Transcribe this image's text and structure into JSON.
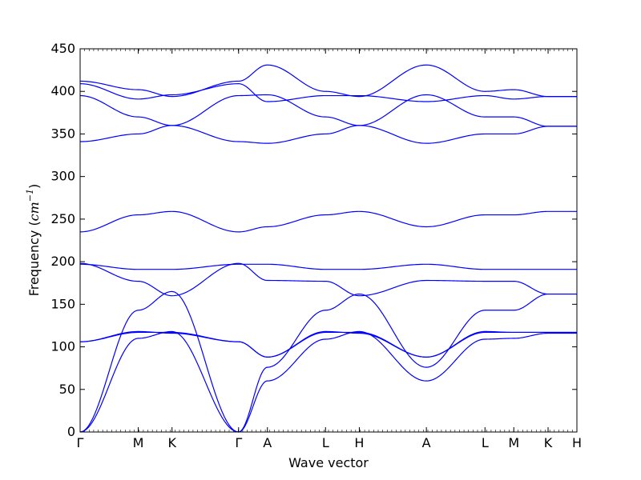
{
  "chart_data": {
    "type": "line",
    "title": "",
    "xlabel": "Wave vector",
    "ylabel_text": "Frequency (",
    "ylabel_unit": "cm",
    "ylabel_exp": "−1",
    "ylabel_close": ")",
    "ylim": [
      0,
      450
    ],
    "yticks": [
      0,
      50,
      100,
      150,
      200,
      250,
      300,
      350,
      400,
      450
    ],
    "kpoints": [
      {
        "label": "Γ",
        "x": 0.0
      },
      {
        "label": "M",
        "x": 0.117
      },
      {
        "label": "K",
        "x": 0.185
      },
      {
        "label": "Γ",
        "x": 0.319
      },
      {
        "label": "A",
        "x": 0.377
      },
      {
        "label": "L",
        "x": 0.494
      },
      {
        "label": "H",
        "x": 0.562
      },
      {
        "label": "A",
        "x": 0.697
      },
      {
        "label": "L",
        "x": 0.815
      },
      {
        "label": "M",
        "x": 0.873
      },
      {
        "label": "K",
        "x": 0.942
      },
      {
        "label": "H",
        "x": 1.0
      }
    ],
    "series_color": "#0000ff",
    "series": [
      {
        "x": [
          0,
          0.117,
          0.185,
          0.319,
          0.377,
          0.494,
          0.562,
          0.697,
          0.815,
          0.873,
          0.942,
          1.0
        ],
        "y": [
          0,
          110,
          118,
          0,
          60,
          109,
          118,
          60,
          109,
          110,
          116,
          116
        ]
      },
      {
        "x": [
          0,
          0.117,
          0.185,
          0.319,
          0.377,
          0.494,
          0.562,
          0.697,
          0.815,
          0.873,
          0.942,
          1.0
        ],
        "y": [
          0,
          143,
          165,
          0,
          76,
          143,
          162,
          76,
          143,
          143,
          162,
          162
        ]
      },
      {
        "x": [
          0,
          0.117,
          0.185,
          0.319,
          0.377,
          0.494,
          0.562,
          0.697,
          0.815,
          0.873,
          0.942,
          1.0
        ],
        "y": [
          106,
          118,
          116,
          106,
          88,
          118,
          116,
          88,
          118,
          117,
          117,
          117
        ]
      },
      {
        "x": [
          0,
          0.117,
          0.185,
          0.319,
          0.377,
          0.494,
          0.562,
          0.697,
          0.815,
          0.873,
          0.942,
          1.0
        ],
        "y": [
          106,
          117,
          117,
          106,
          88,
          117,
          117,
          88,
          117,
          117,
          117,
          117
        ]
      },
      {
        "x": [
          0,
          0.117,
          0.185,
          0.319,
          0.377,
          0.494,
          0.562,
          0.697,
          0.815,
          0.873,
          0.942,
          1.0
        ],
        "y": [
          198,
          177,
          160,
          198,
          178,
          177,
          160,
          178,
          177,
          177,
          162,
          162
        ]
      },
      {
        "x": [
          0,
          0.117,
          0.185,
          0.319,
          0.377,
          0.494,
          0.562,
          0.697,
          0.815,
          0.873,
          0.942,
          1.0
        ],
        "y": [
          197,
          191,
          191,
          197,
          197,
          191,
          191,
          197,
          191,
          191,
          191,
          191
        ]
      },
      {
        "x": [
          0,
          0.117,
          0.185,
          0.319,
          0.377,
          0.494,
          0.562,
          0.697,
          0.815,
          0.873,
          0.942,
          1.0
        ],
        "y": [
          235,
          255,
          259,
          235,
          241,
          255,
          259,
          241,
          255,
          255,
          259,
          259
        ]
      },
      {
        "x": [
          0,
          0.117,
          0.185,
          0.319,
          0.377,
          0.494,
          0.562,
          0.697,
          0.815,
          0.873,
          0.942,
          1.0
        ],
        "y": [
          341,
          350,
          360,
          341,
          339,
          350,
          360,
          339,
          350,
          350,
          359,
          359
        ]
      },
      {
        "x": [
          0,
          0.117,
          0.185,
          0.319,
          0.377,
          0.494,
          0.562,
          0.697,
          0.815,
          0.873,
          0.942,
          1.0
        ],
        "y": [
          395,
          370,
          360,
          395,
          396,
          370,
          360,
          396,
          370,
          370,
          359,
          359
        ]
      },
      {
        "x": [
          0,
          0.117,
          0.185,
          0.319,
          0.377,
          0.494,
          0.562,
          0.697,
          0.815,
          0.873,
          0.942,
          1.0
        ],
        "y": [
          409,
          391,
          396,
          409,
          388,
          395,
          395,
          388,
          395,
          391,
          394,
          394
        ]
      },
      {
        "x": [
          0,
          0.117,
          0.185,
          0.319,
          0.377,
          0.494,
          0.562,
          0.697,
          0.815,
          0.873,
          0.942,
          1.0
        ],
        "y": [
          412,
          402,
          394,
          412,
          431,
          400,
          394,
          431,
          400,
          402,
          394,
          394
        ]
      }
    ]
  }
}
